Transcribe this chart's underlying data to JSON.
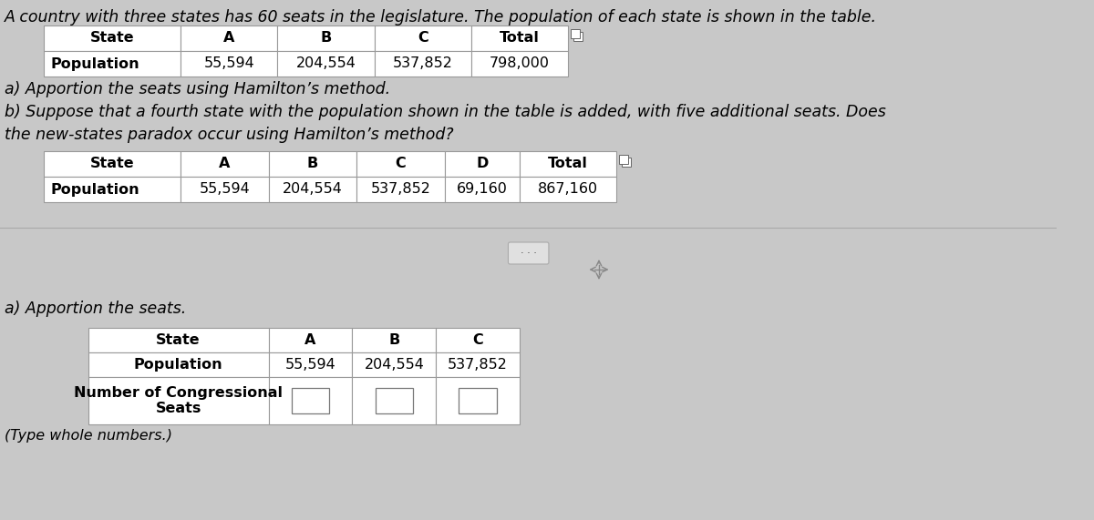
{
  "bg_color": "#c8c8c8",
  "title_text": "A country with three states has 60 seats in the legislature. The population of each state is shown in the table.",
  "title_fontsize": 12.5,
  "table1_headers": [
    "State",
    "A",
    "B",
    "C",
    "Total"
  ],
  "table1_row": [
    "Population",
    "55,594",
    "204,554",
    "537,852",
    "798,000"
  ],
  "part_a_text": "a) Apportion the seats using Hamilton’s method.",
  "part_b_text": "b) Suppose that a fourth state with the population shown in the table is added, with five additional seats. Does\nthe new-states paradox occur using Hamilton’s method?",
  "table2_headers": [
    "State",
    "A",
    "B",
    "C",
    "D",
    "Total"
  ],
  "table2_row": [
    "Population",
    "55,594",
    "204,554",
    "537,852",
    "69,160",
    "867,160"
  ],
  "part_a2_text": "a) Apportion the seats.",
  "table3_headers": [
    "State",
    "A",
    "B",
    "C"
  ],
  "table3_row2": [
    "Population",
    "55,594",
    "204,554",
    "537,852"
  ],
  "table3_row3_label": "Number of Congressional\nSeats",
  "footer_text": "(Type whole numbers.)",
  "text_color": "#000000",
  "cell_border_color": "#999999",
  "cell_border_color_dark": "#555555",
  "font_size_table": 11.5,
  "font_size_text": 12.5,
  "font_size_table3": 11.5
}
